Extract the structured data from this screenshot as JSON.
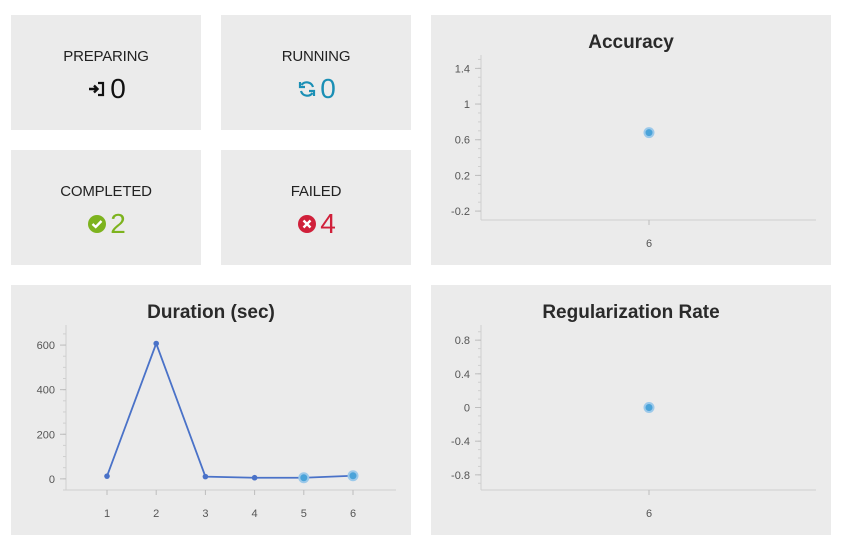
{
  "stats": {
    "preparing": {
      "label": "PREPARING",
      "value": "0",
      "icon": "sign-in-icon",
      "color": "#111111"
    },
    "running": {
      "label": "RUNNING",
      "value": "0",
      "icon": "refresh-icon",
      "color": "#1a8fb5"
    },
    "completed": {
      "label": "COMPLETED",
      "value": "2",
      "icon": "check-circle-icon",
      "color": "#7db31e"
    },
    "failed": {
      "label": "FAILED",
      "value": "4",
      "icon": "times-circle-icon",
      "color": "#d0203a"
    }
  },
  "chart_data": [
    {
      "id": "accuracy",
      "type": "scatter",
      "title": "Accuracy",
      "x": [
        6
      ],
      "y": [
        0.68
      ],
      "xticks": [
        "6"
      ],
      "yticks": [
        -0.2,
        0.2,
        0.6,
        1,
        1.4
      ],
      "ylim": [
        -0.3,
        1.55
      ],
      "grid": false,
      "color": "#4aa3d9"
    },
    {
      "id": "duration",
      "type": "line",
      "title": "Duration (sec)",
      "x": [
        1,
        2,
        3,
        4,
        5,
        6
      ],
      "y": [
        12,
        607,
        10,
        5,
        5,
        14
      ],
      "xticks": [
        "1",
        "2",
        "3",
        "4",
        "5",
        "6"
      ],
      "yticks": [
        0,
        200,
        400,
        600
      ],
      "ylim": [
        -50,
        690
      ],
      "grid": false,
      "color": "#4a72c8"
    },
    {
      "id": "regularization",
      "type": "scatter",
      "title": "Regularization Rate",
      "x": [
        6
      ],
      "y": [
        0
      ],
      "xticks": [
        "6"
      ],
      "yticks": [
        -0.8,
        -0.4,
        0,
        0.4,
        0.8
      ],
      "ylim": [
        -0.98,
        0.98
      ],
      "grid": false,
      "color": "#4aa3d9"
    }
  ]
}
